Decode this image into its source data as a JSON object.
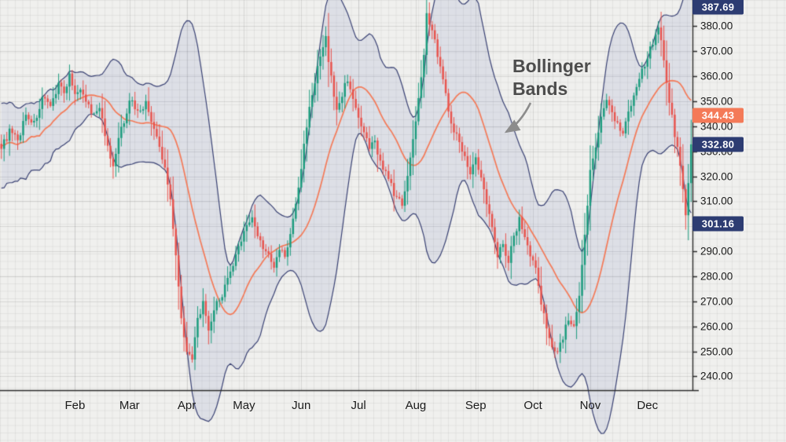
{
  "chart_data": {
    "type": "candlestick",
    "overlays": [
      "bollinger_bands"
    ],
    "bollinger": {
      "period": 20,
      "stddev_mult": 2
    },
    "annotation": {
      "line1": "Bollinger",
      "line2": "Bands"
    },
    "x_labels": [
      "Feb",
      "Mar",
      "Apr",
      "May",
      "Jun",
      "Jul",
      "Aug",
      "Sep",
      "Oct",
      "Nov",
      "Dec"
    ],
    "month_start_days": [
      27,
      47,
      68,
      89,
      110,
      131,
      152,
      174,
      195,
      216,
      237
    ],
    "total_days": 254,
    "y_ticks": [
      240,
      250,
      260,
      270,
      280,
      290,
      300,
      310,
      320,
      330,
      340,
      350,
      360,
      370,
      380
    ],
    "y_tick_labels": [
      "240.00",
      "250.00",
      "260.00",
      "270.00",
      "280.00",
      "290.00",
      "300.00",
      "310.00",
      "320.00",
      "330.00",
      "340.00",
      "350.00",
      "360.00",
      "370.00",
      "380.00"
    ],
    "y_range": [
      234.5,
      390.5
    ],
    "badges": [
      {
        "name": "upper-band-value",
        "label": "387.69",
        "value": 387.69,
        "bg": "#2d3c72"
      },
      {
        "name": "basis-value",
        "label": "344.43",
        "value": 344.43,
        "bg": "#f47a58"
      },
      {
        "name": "last-price",
        "label": "332.80",
        "value": 332.8,
        "bg": "#2d3c72"
      },
      {
        "name": "lower-band-value",
        "label": "301.16",
        "value": 301.16,
        "bg": "#2d3c72"
      }
    ],
    "close_waypoints": [
      [
        0,
        331
      ],
      [
        3,
        338
      ],
      [
        6,
        334
      ],
      [
        9,
        345
      ],
      [
        12,
        341
      ],
      [
        15,
        351
      ],
      [
        18,
        347
      ],
      [
        21,
        358
      ],
      [
        23,
        353
      ],
      [
        25,
        361
      ],
      [
        27,
        352
      ],
      [
        30,
        354
      ],
      [
        33,
        345
      ],
      [
        36,
        348
      ],
      [
        39,
        331
      ],
      [
        41,
        323
      ],
      [
        43,
        335
      ],
      [
        45,
        342
      ],
      [
        47,
        351
      ],
      [
        50,
        346
      ],
      [
        53,
        349
      ],
      [
        56,
        339
      ],
      [
        58,
        331
      ],
      [
        60,
        323
      ],
      [
        62,
        311
      ],
      [
        64,
        289
      ],
      [
        66,
        263
      ],
      [
        68,
        251
      ],
      [
        70,
        246
      ],
      [
        72,
        263
      ],
      [
        74,
        269
      ],
      [
        76,
        257
      ],
      [
        78,
        267
      ],
      [
        81,
        273
      ],
      [
        84,
        281
      ],
      [
        87,
        291
      ],
      [
        89,
        299
      ],
      [
        92,
        303
      ],
      [
        95,
        294
      ],
      [
        98,
        288
      ],
      [
        100,
        283
      ],
      [
        102,
        291
      ],
      [
        104,
        288
      ],
      [
        106,
        296
      ],
      [
        108,
        309
      ],
      [
        110,
        323
      ],
      [
        112,
        341
      ],
      [
        114,
        353
      ],
      [
        116,
        363
      ],
      [
        118,
        371
      ],
      [
        119,
        375
      ],
      [
        121,
        359
      ],
      [
        123,
        346
      ],
      [
        125,
        353
      ],
      [
        127,
        359
      ],
      [
        129,
        352
      ],
      [
        131,
        342
      ],
      [
        133,
        337
      ],
      [
        135,
        331
      ],
      [
        137,
        334
      ],
      [
        139,
        326
      ],
      [
        141,
        321
      ],
      [
        143,
        316
      ],
      [
        145,
        311
      ],
      [
        147,
        309
      ],
      [
        149,
        321
      ],
      [
        151,
        334
      ],
      [
        153,
        352
      ],
      [
        155,
        370
      ],
      [
        156,
        384
      ],
      [
        158,
        379
      ],
      [
        160,
        369
      ],
      [
        162,
        359
      ],
      [
        164,
        346
      ],
      [
        166,
        339
      ],
      [
        168,
        333
      ],
      [
        170,
        329
      ],
      [
        172,
        321
      ],
      [
        174,
        327
      ],
      [
        176,
        319
      ],
      [
        178,
        309
      ],
      [
        180,
        301
      ],
      [
        182,
        289
      ],
      [
        184,
        293
      ],
      [
        186,
        286
      ],
      [
        188,
        296
      ],
      [
        190,
        303
      ],
      [
        192,
        296
      ],
      [
        194,
        289
      ],
      [
        196,
        283
      ],
      [
        198,
        269
      ],
      [
        200,
        259
      ],
      [
        202,
        253
      ],
      [
        204,
        250
      ],
      [
        206,
        256
      ],
      [
        208,
        263
      ],
      [
        210,
        259
      ],
      [
        212,
        271
      ],
      [
        214,
        296
      ],
      [
        216,
        322
      ],
      [
        218,
        333
      ],
      [
        220,
        343
      ],
      [
        222,
        351
      ],
      [
        224,
        346
      ],
      [
        226,
        341
      ],
      [
        228,
        338
      ],
      [
        230,
        346
      ],
      [
        232,
        353
      ],
      [
        234,
        359
      ],
      [
        236,
        365
      ],
      [
        238,
        371
      ],
      [
        240,
        377
      ],
      [
        241,
        381
      ],
      [
        243,
        366
      ],
      [
        245,
        350
      ],
      [
        247,
        337
      ],
      [
        249,
        325
      ],
      [
        250,
        314
      ],
      [
        251,
        304
      ],
      [
        252,
        318
      ],
      [
        253,
        332.8
      ]
    ]
  },
  "colors": {
    "background": "#f0f0ee",
    "grid_minor": "rgba(0,0,0,0.05)",
    "grid_major": "rgba(0,0,0,0.10)",
    "up": "#1c9c7e",
    "down": "#e8544e",
    "band_line": "#3a4274",
    "band_fill": "rgba(108,118,182,0.14)",
    "basis_line": "#f47a58",
    "axis": "#2b2b2b",
    "annotation_text": "#4d4d4d",
    "arrow": "#8c8c8c",
    "badge_text": "#ffffff"
  }
}
